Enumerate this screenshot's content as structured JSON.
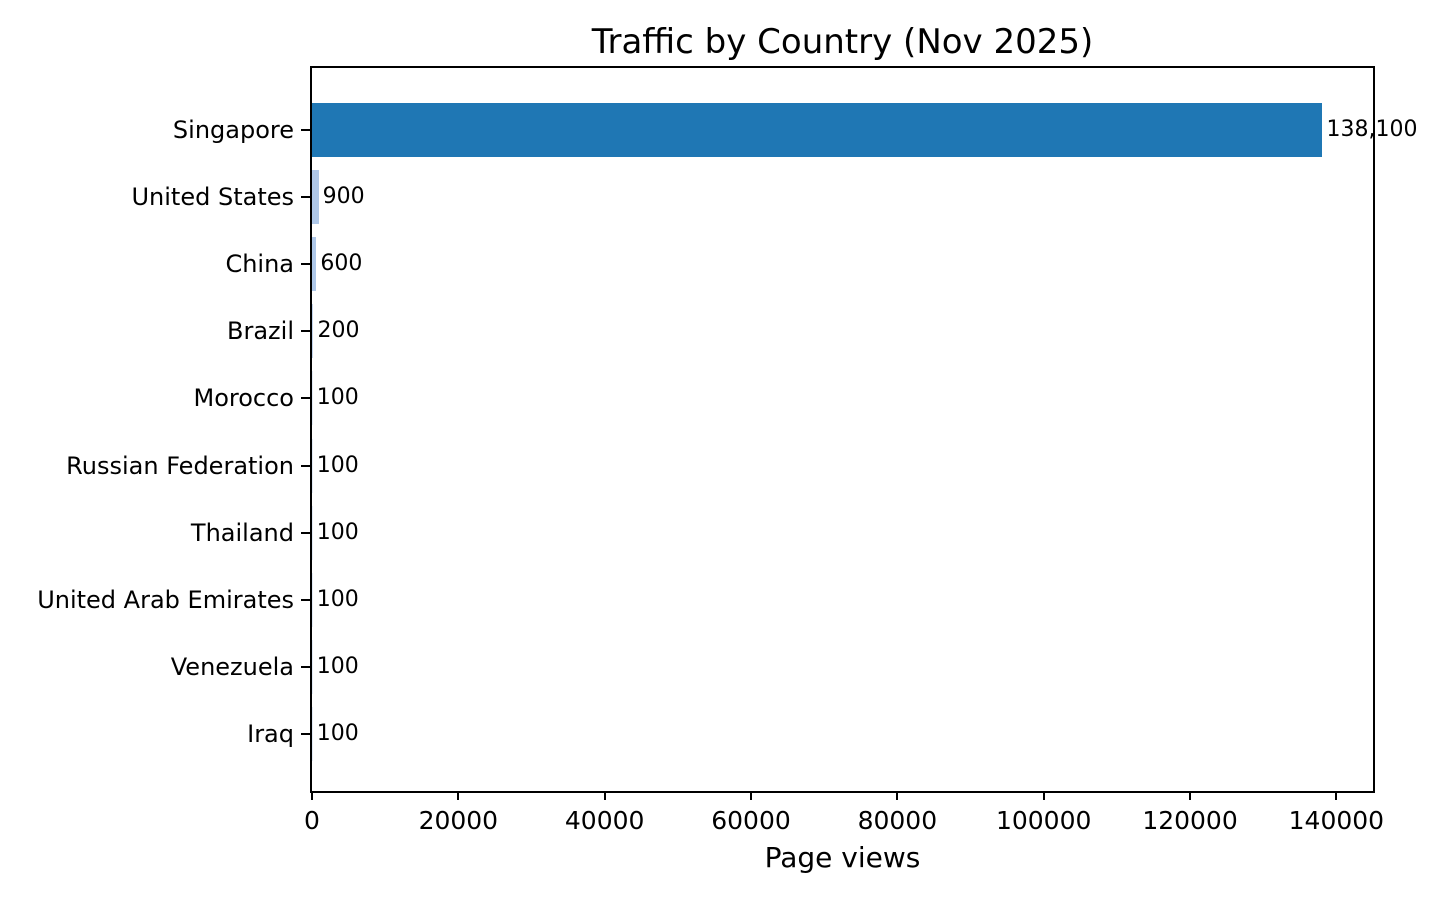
{
  "chart_data": {
    "type": "bar",
    "orientation": "horizontal",
    "title": "Traffic by Country (Nov 2025)",
    "xlabel": "Page views",
    "ylabel": "",
    "categories": [
      "Singapore",
      "United States",
      "China",
      "Brazil",
      "Morocco",
      "Russian Federation",
      "Thailand",
      "United Arab Emirates",
      "Venezuela",
      "Iraq"
    ],
    "values": [
      138100,
      900,
      600,
      200,
      100,
      100,
      100,
      100,
      100,
      100
    ],
    "value_labels": [
      "138,100",
      "900",
      "600",
      "200",
      "100",
      "100",
      "100",
      "100",
      "100",
      "100"
    ],
    "x_ticks": [
      0,
      20000,
      40000,
      60000,
      80000,
      100000,
      120000,
      140000
    ],
    "x_tick_labels": [
      "0",
      "20000",
      "40000",
      "60000",
      "80000",
      "100000",
      "120000",
      "140000"
    ],
    "xlim": [
      0,
      145005
    ],
    "grid": false,
    "legend": null,
    "colors": {
      "bar": "#1f77b4",
      "bar_thin": "#aec7e8",
      "bar_hairline": "#c3d4ec",
      "bar_faint": "#e3ebf6",
      "axis": "#000000",
      "background": "#ffffff"
    }
  }
}
